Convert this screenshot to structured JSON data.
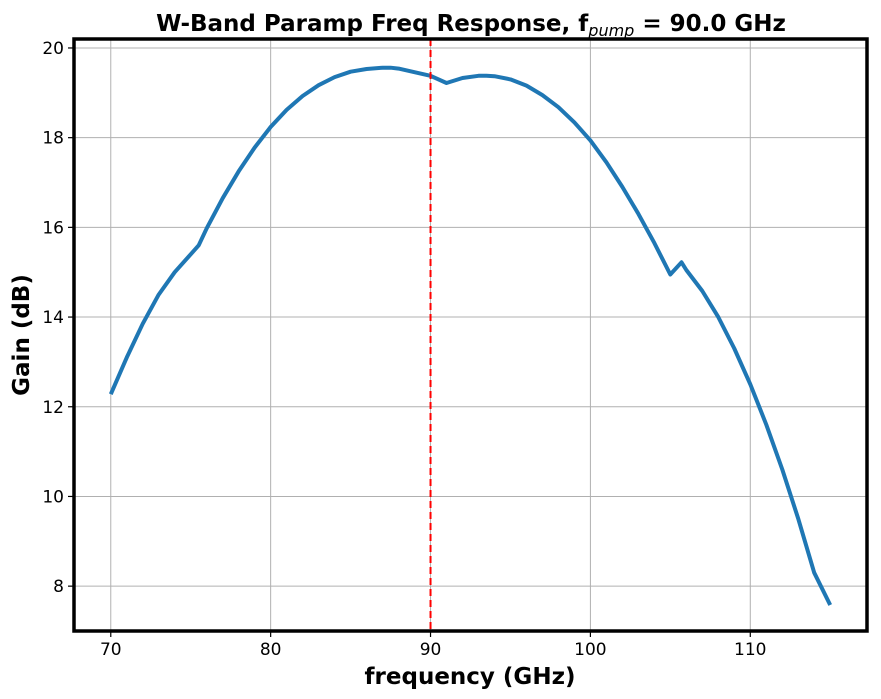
{
  "chart_data": {
    "type": "line",
    "title": {
      "prefix": "W-Band Paramp Freq Response, f",
      "subscript": "pump",
      "suffix": " = 90.0 GHz"
    },
    "xlabel": "frequency (GHz)",
    "ylabel": "Gain (dB)",
    "xlim": [
      67.7,
      117.3
    ],
    "ylim": [
      7.0,
      20.2
    ],
    "xticks": [
      70,
      80,
      90,
      100,
      110
    ],
    "yticks": [
      8,
      10,
      12,
      14,
      16,
      18,
      20
    ],
    "grid": true,
    "series": [
      {
        "color": "#1f77b4",
        "x": [
          70,
          71,
          72,
          73,
          74,
          75,
          75.5,
          76,
          77,
          78,
          79,
          80,
          81,
          82,
          83,
          84,
          85,
          86,
          87,
          87.5,
          88,
          89,
          90,
          91,
          92,
          93,
          93.5,
          94,
          95,
          96,
          97,
          98,
          99,
          100,
          101,
          102,
          103,
          104,
          105,
          105.7,
          106,
          107,
          108,
          109,
          110,
          111,
          112,
          113,
          114,
          115
        ],
        "y": [
          12.28,
          13.1,
          13.85,
          14.5,
          15.0,
          15.4,
          15.6,
          15.98,
          16.65,
          17.25,
          17.78,
          18.24,
          18.62,
          18.93,
          19.17,
          19.35,
          19.47,
          19.53,
          19.56,
          19.56,
          19.54,
          19.46,
          19.38,
          19.22,
          19.33,
          19.38,
          19.38,
          19.37,
          19.3,
          19.16,
          18.95,
          18.68,
          18.34,
          17.94,
          17.45,
          16.9,
          16.3,
          15.65,
          14.95,
          15.22,
          15.05,
          14.58,
          14.0,
          13.3,
          12.5,
          11.6,
          10.6,
          9.5,
          8.3,
          7.58
        ]
      }
    ],
    "vline": {
      "x": 90.0,
      "color": "#ff0000",
      "style": "dashed"
    }
  }
}
